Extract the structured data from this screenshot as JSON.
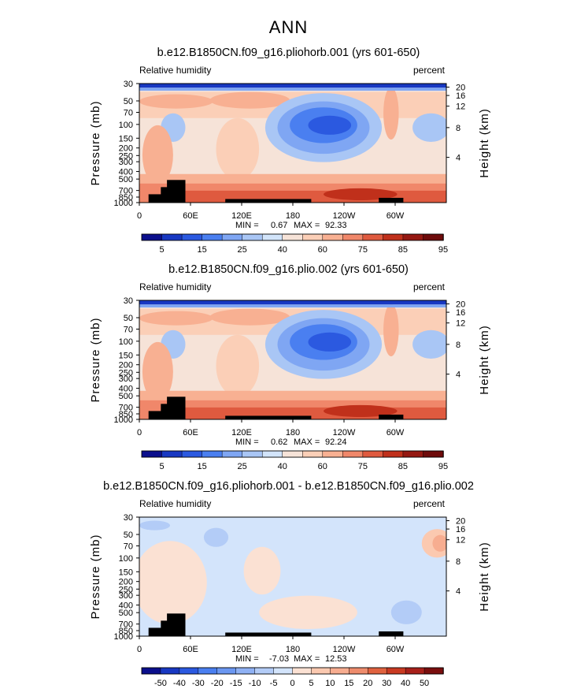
{
  "main_title": "ANN",
  "colors": {
    "rh_palette": [
      "#0b0f8c",
      "#1838c2",
      "#2b59e0",
      "#4a7ff0",
      "#7fa6f3",
      "#a9c6f5",
      "#d2e4fa",
      "#f6e3d8",
      "#fbcfb7",
      "#f8b092",
      "#f0876a",
      "#df5a3f",
      "#c0301b",
      "#951812",
      "#6e0b0b"
    ],
    "diff_palette": [
      "#0b0f8c",
      "#1838c2",
      "#2b59e0",
      "#4a7ff0",
      "#6b97f1",
      "#8fb1f4",
      "#b3ccf7",
      "#d3e4fb",
      "#fbe1d3",
      "#fbc9b0",
      "#f7ad90",
      "#ee8c6d",
      "#e0623f",
      "#c93a22",
      "#a8201a",
      "#7a0e0e"
    ]
  },
  "chart_data": [
    {
      "type": "heatmap",
      "title": "b.e12.B1850CN.f09_g16.pliohorb.001 (yrs 601-650)",
      "left_label": "Relative humidity",
      "right_label": "percent",
      "ylabel": "Pressure (mb)",
      "ylabel_right": "Height (km)",
      "x_ticks": [
        "0",
        "60E",
        "120E",
        "180",
        "120W",
        "60W"
      ],
      "y_ticks": [
        "30",
        "50",
        "70",
        "100",
        "150",
        "200",
        "250",
        "300",
        "400",
        "500",
        "700",
        "850",
        "1000"
      ],
      "height_ticks": [
        "20",
        "16",
        "12",
        "8",
        "4"
      ],
      "stats": {
        "min_label": "MIN =",
        "min": "0.67",
        "max_label": "MAX =",
        "max": "92.33"
      },
      "colorbar_labels": [
        "5",
        "15",
        "25",
        "40",
        "60",
        "75",
        "85",
        "95"
      ],
      "min_value": 0.67,
      "max_value": 92.33
    },
    {
      "type": "heatmap",
      "title": "b.e12.B1850CN.f09_g16.plio.002 (yrs 601-650)",
      "left_label": "Relative humidity",
      "right_label": "percent",
      "ylabel": "Pressure (mb)",
      "ylabel_right": "Height (km)",
      "x_ticks": [
        "0",
        "60E",
        "120E",
        "180",
        "120W",
        "60W"
      ],
      "y_ticks": [
        "30",
        "50",
        "70",
        "100",
        "150",
        "200",
        "250",
        "300",
        "400",
        "500",
        "700",
        "850",
        "1000"
      ],
      "height_ticks": [
        "20",
        "16",
        "12",
        "8",
        "4"
      ],
      "stats": {
        "min_label": "MIN =",
        "min": "0.62",
        "max_label": "MAX =",
        "max": "92.24"
      },
      "colorbar_labels": [
        "5",
        "15",
        "25",
        "40",
        "60",
        "75",
        "85",
        "95"
      ],
      "min_value": 0.62,
      "max_value": 92.24
    },
    {
      "type": "heatmap",
      "title": "b.e12.B1850CN.f09_g16.pliohorb.001 - b.e12.B1850CN.f09_g16.plio.002",
      "left_label": "Relative humidity",
      "right_label": "percent",
      "ylabel": "Pressure (mb)",
      "ylabel_right": "Height (km)",
      "x_ticks": [
        "0",
        "60E",
        "120E",
        "180",
        "120W",
        "60W"
      ],
      "y_ticks": [
        "30",
        "50",
        "70",
        "100",
        "150",
        "200",
        "250",
        "300",
        "400",
        "500",
        "700",
        "850",
        "1000"
      ],
      "height_ticks": [
        "20",
        "16",
        "12",
        "8",
        "4"
      ],
      "stats": {
        "min_label": "MIN =",
        "min": "-7.03",
        "max_label": "MAX =",
        "max": "12.53"
      },
      "colorbar_labels": [
        "-50",
        "-40",
        "-30",
        "-20",
        "-15",
        "-10",
        "-5",
        "0",
        "5",
        "10",
        "15",
        "20",
        "30",
        "40",
        "50"
      ],
      "min_value": -7.03,
      "max_value": 12.53
    }
  ]
}
